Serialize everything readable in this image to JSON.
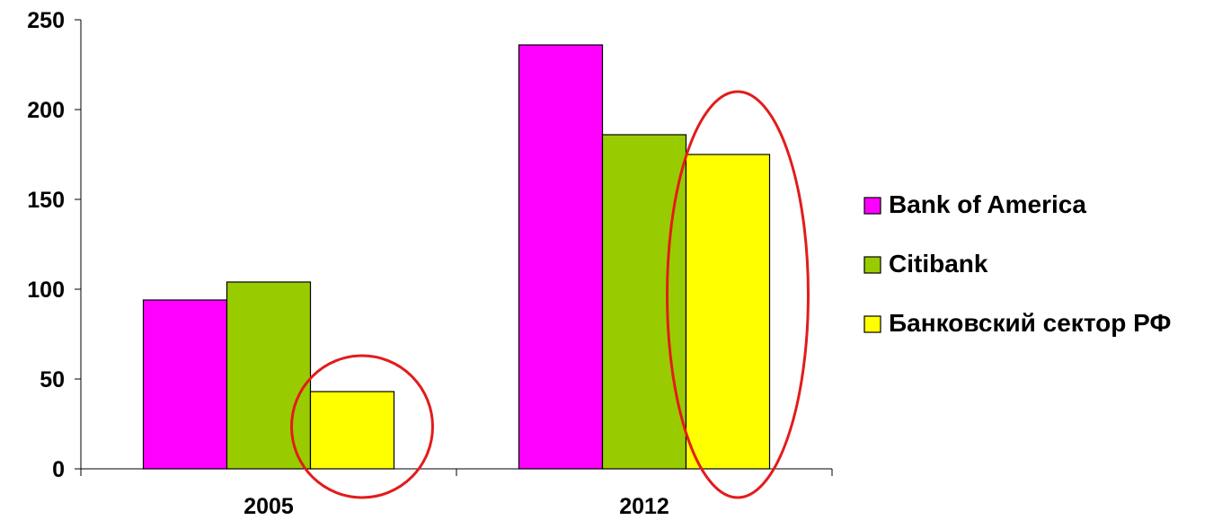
{
  "chart_data": {
    "type": "bar",
    "categories": [
      "2005",
      "2012"
    ],
    "series": [
      {
        "name": "Bank of America",
        "values": [
          94,
          236
        ],
        "color": "#FF00FF"
      },
      {
        "name": "Citibank",
        "values": [
          104,
          186
        ],
        "color": "#99CC00"
      },
      {
        "name": "Банковский сектор РФ",
        "values": [
          43,
          175
        ],
        "color": "#FFFF00"
      }
    ],
    "yticks": [
      0,
      50,
      100,
      150,
      200,
      250
    ],
    "ylim": [
      0,
      250
    ],
    "grid": false,
    "legend_position": "right",
    "highlight_color": "#E31B1B",
    "highlights": [
      {
        "category": "2005",
        "series": "Банковский сектор РФ"
      },
      {
        "category": "2012",
        "series": "Банковский сектор РФ"
      }
    ]
  }
}
